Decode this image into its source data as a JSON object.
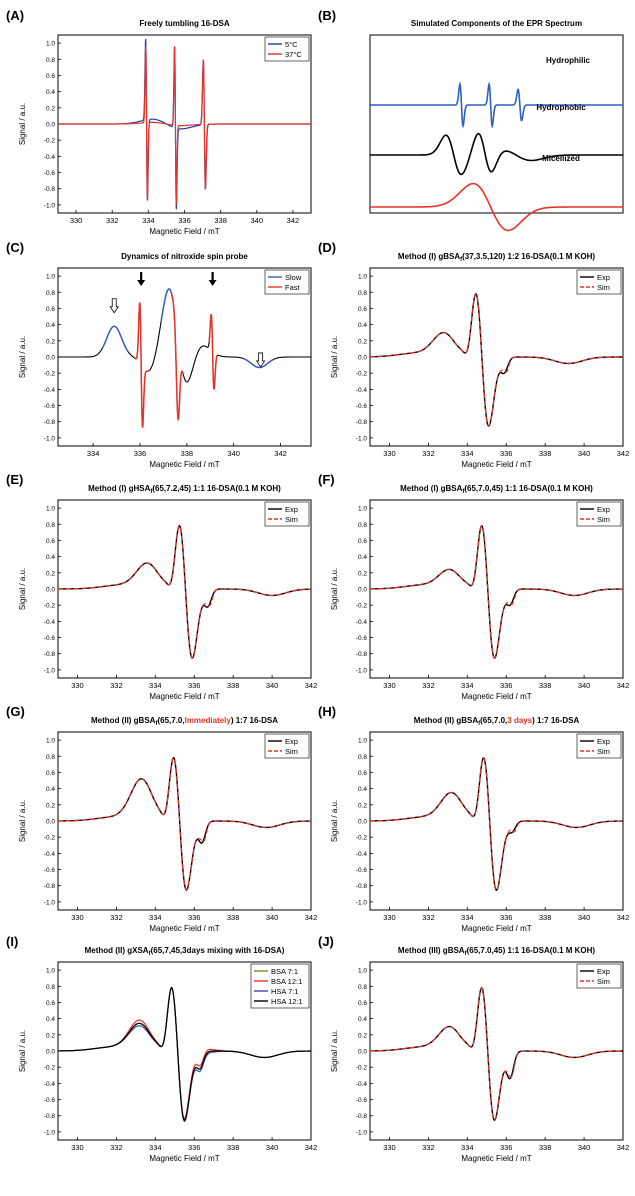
{
  "panels": [
    {
      "letter": "(A)",
      "title_parts": [
        {
          "text": "Freely tumbling 16-DSA",
          "color": "#000000"
        }
      ],
      "xlabel": "Magnetic Field / mT",
      "ylabel": "Signal / a.u.",
      "xticks": [
        "330",
        "332",
        "334",
        "336",
        "338",
        "340",
        "342"
      ],
      "yticks": [
        "-1.0",
        "-0.8",
        "-0.6",
        "-0.4",
        "-0.2",
        "0.0",
        "0.2",
        "0.4",
        "0.6",
        "0.8",
        "1.0"
      ],
      "legend": [
        {
          "label": "5°C",
          "color": "#1f3fa8"
        },
        {
          "label": "37°C",
          "color": "#e8332a"
        }
      ]
    },
    {
      "letter": "(B)",
      "title_parts": [
        {
          "text": "Simulated Components of the  EPR Spectrum",
          "color": "#000000"
        }
      ],
      "component_labels": [
        {
          "text": "Hydrophilic",
          "color": "#000000"
        },
        {
          "text": "Hydrophobic",
          "color": "#000000"
        },
        {
          "text": "Micellized",
          "color": "#000000"
        }
      ]
    },
    {
      "letter": "(C)",
      "title_parts": [
        {
          "text": "Dynamics of nitroxide spin probe",
          "color": "#000000"
        }
      ],
      "xlabel": "Magnetic Field / mT",
      "ylabel": "Signal / a.u.",
      "xticks": [
        "334",
        "336",
        "338",
        "340",
        "342"
      ],
      "yticks": [
        "-1.0",
        "-0.8",
        "-0.6",
        "-0.4",
        "-0.2",
        "0.0",
        "0.2",
        "0.4",
        "0.6",
        "0.8",
        "1.0"
      ],
      "legend": [
        {
          "label": "Slow",
          "color": "#3a5ec0"
        },
        {
          "label": "Fast",
          "color": "#e8332a"
        }
      ]
    },
    {
      "letter": "(D)",
      "title_parts": [
        {
          "text": "Method (I)     gBSA",
          "color": "#000000"
        },
        {
          "text": "f",
          "color": "#000000",
          "sub": true
        },
        {
          "text": "(37,3.5,120)  1:2  16-DSA(0.1 M KOH)",
          "color": "#000000"
        }
      ],
      "xlabel": "Magnetic Field / mT",
      "ylabel": "Signal / a.u.",
      "xticks": [
        "330",
        "332",
        "334",
        "336",
        "338",
        "340",
        "342"
      ],
      "yticks": [
        "-1.0",
        "-0.8",
        "-0.6",
        "-0.4",
        "-0.2",
        "0.0",
        "0.2",
        "0.4",
        "0.6",
        "0.8",
        "1.0"
      ],
      "legend": [
        {
          "label": "Exp",
          "color": "#000000"
        },
        {
          "label": "Sim",
          "color": "#e8332a",
          "dashed": true
        }
      ]
    },
    {
      "letter": "(E)",
      "title_parts": [
        {
          "text": "Method (I)     gHSA",
          "color": "#000000"
        },
        {
          "text": "f",
          "color": "#000000",
          "sub": true
        },
        {
          "text": "(65,7.2,45)  1:1  16-DSA(0.1 M KOH)",
          "color": "#000000"
        }
      ],
      "xlabel": "Magnetic Field / mT",
      "ylabel": "Signal / a.u.",
      "xticks": [
        "330",
        "332",
        "334",
        "336",
        "338",
        "340",
        "342"
      ],
      "yticks": [
        "-1.0",
        "-0.8",
        "-0.6",
        "-0.4",
        "-0.2",
        "0.0",
        "0.2",
        "0.4",
        "0.6",
        "0.8",
        "1.0"
      ],
      "legend": [
        {
          "label": "Exp",
          "color": "#000000"
        },
        {
          "label": "Sim",
          "color": "#e8332a",
          "dashed": true
        }
      ]
    },
    {
      "letter": "(F)",
      "title_parts": [
        {
          "text": "Method (I)     gBSA",
          "color": "#000000"
        },
        {
          "text": "f",
          "color": "#000000",
          "sub": true
        },
        {
          "text": "(65,7.0,45)  1:1  16-DSA(0.1 M KOH)",
          "color": "#000000"
        }
      ],
      "xlabel": "Magnetic Field / mT",
      "ylabel": "Signal / a.u.",
      "xticks": [
        "330",
        "332",
        "334",
        "336",
        "338",
        "340",
        "342"
      ],
      "yticks": [
        "-1.0",
        "-0.8",
        "-0.6",
        "-0.4",
        "-0.2",
        "0.0",
        "0.2",
        "0.4",
        "0.6",
        "0.8",
        "1.0"
      ],
      "legend": [
        {
          "label": "Exp",
          "color": "#000000"
        },
        {
          "label": "Sim",
          "color": "#e8332a",
          "dashed": true
        }
      ]
    },
    {
      "letter": "(G)",
      "title_parts": [
        {
          "text": "Method (II)     gBSA",
          "color": "#000000"
        },
        {
          "text": "f",
          "color": "#000000",
          "sub": true
        },
        {
          "text": "(65,7.0,",
          "color": "#000000"
        },
        {
          "text": "Immediately",
          "color": "#e8332a"
        },
        {
          "text": ")  1:7  16-DSA",
          "color": "#000000"
        }
      ],
      "xlabel": "Magnetic Field / mT",
      "ylabel": "Signal / a.u.",
      "xticks": [
        "330",
        "332",
        "334",
        "336",
        "338",
        "340",
        "342"
      ],
      "yticks": [
        "-1.0",
        "-0.8",
        "-0.6",
        "-0.4",
        "-0.2",
        "0.0",
        "0.2",
        "0.4",
        "0.6",
        "0.8",
        "1.0"
      ],
      "legend": [
        {
          "label": "Exp",
          "color": "#000000"
        },
        {
          "label": "Sim",
          "color": "#e8332a",
          "dashed": true
        }
      ]
    },
    {
      "letter": "(H)",
      "title_parts": [
        {
          "text": "Method (II)     gBSA",
          "color": "#000000"
        },
        {
          "text": "f",
          "color": "#000000",
          "sub": true
        },
        {
          "text": "(65,7.0,",
          "color": "#000000"
        },
        {
          "text": "3 days",
          "color": "#e8332a"
        },
        {
          "text": ")  1:7  16-DSA",
          "color": "#000000"
        }
      ],
      "xlabel": "Magnetic Field / mT",
      "ylabel": "Signal / a.u.",
      "xticks": [
        "330",
        "332",
        "334",
        "336",
        "338",
        "340",
        "342"
      ],
      "yticks": [
        "-1.0",
        "-0.8",
        "-0.6",
        "-0.4",
        "-0.2",
        "0.0",
        "0.2",
        "0.4",
        "0.6",
        "0.8",
        "1.0"
      ],
      "legend": [
        {
          "label": "Exp",
          "color": "#000000"
        },
        {
          "label": "Sim",
          "color": "#e8332a",
          "dashed": true
        }
      ]
    },
    {
      "letter": "(I)",
      "title_parts": [
        {
          "text": "Method (II)     gXSA",
          "color": "#000000"
        },
        {
          "text": "f",
          "color": "#000000",
          "sub": true
        },
        {
          "text": "(65,7,45,3days mixing with 16-DSA)",
          "color": "#000000"
        }
      ],
      "xlabel": "Magnetic Field / mT",
      "ylabel": "Signal / a.u.",
      "xticks": [
        "330",
        "332",
        "334",
        "336",
        "338",
        "340",
        "342"
      ],
      "yticks": [
        "-1.0",
        "-0.8",
        "-0.6",
        "-0.4",
        "-0.2",
        "0.0",
        "0.2",
        "0.4",
        "0.6",
        "0.8",
        "1.0"
      ],
      "legend": [
        {
          "label": "BSA  7:1",
          "color": "#7a8a2a"
        },
        {
          "label": "BSA 12:1",
          "color": "#e8332a"
        },
        {
          "label": "HSA  7:1",
          "color": "#3a4fb0"
        },
        {
          "label": "HSA 12:1",
          "color": "#000000"
        }
      ]
    },
    {
      "letter": "(J)",
      "title_parts": [
        {
          "text": "Method (III)     gBSA",
          "color": "#000000"
        },
        {
          "text": "f",
          "color": "#000000",
          "sub": true
        },
        {
          "text": "(65,7.0,45)  1:1  16-DSA(0.1 M KOH)",
          "color": "#000000"
        }
      ],
      "xlabel": "Magnetic Field / mT",
      "ylabel": "Signal / a.u.",
      "xticks": [
        "330",
        "332",
        "334",
        "336",
        "338",
        "340",
        "342"
      ],
      "yticks": [
        "-1.0",
        "-0.8",
        "-0.6",
        "-0.4",
        "-0.2",
        "0.0",
        "0.2",
        "0.4",
        "0.6",
        "0.8",
        "1.0"
      ],
      "legend": [
        {
          "label": "Exp",
          "color": "#000000"
        },
        {
          "label": "Sim",
          "color": "#e8332a",
          "dashed": true
        }
      ]
    }
  ],
  "chart_data": [
    {
      "panel": "A",
      "type": "line",
      "xlim": [
        329,
        343
      ],
      "ylim": [
        -1.1,
        1.1
      ],
      "series": [
        {
          "name": "5°C",
          "color": "#1f3fa8",
          "lines": [
            {
              "center": 333.9,
              "amp": 1.0,
              "width": 0.05
            },
            {
              "center": 335.5,
              "amp": 1.0,
              "width": 0.05
            },
            {
              "center": 337.1,
              "amp": 0.8,
              "width": 0.06
            }
          ],
          "bump_amp": 0.06
        },
        {
          "name": "37°C",
          "color": "#e8332a",
          "lines": [
            {
              "center": 333.9,
              "amp": 0.95,
              "width": 0.045
            },
            {
              "center": 335.5,
              "amp": 0.98,
              "width": 0.045
            },
            {
              "center": 337.1,
              "amp": 0.8,
              "width": 0.055
            }
          ],
          "bump_amp": 0.02
        }
      ]
    },
    {
      "panel": "B",
      "type": "line",
      "series": [
        {
          "name": "Hydrophilic",
          "color": "#2f5fc0",
          "kind": "three-sharp"
        },
        {
          "name": "Hydrophobic",
          "color": "#000000",
          "kind": "anisotropic"
        },
        {
          "name": "Micellized",
          "color": "#e8332a",
          "kind": "broad"
        }
      ]
    },
    {
      "panel": "C",
      "type": "line",
      "xlim": [
        332.5,
        343.3
      ],
      "ylim": [
        -1.1,
        1.1
      ],
      "series": [
        {
          "name": "Slow",
          "color": "#3a5ec0",
          "highlights": [
            [
              334.4,
              335.5
            ],
            [
              340.4,
              341.7
            ],
            [
              336.9,
              337.4
            ]
          ]
        },
        {
          "name": "Fast",
          "color": "#e8332a",
          "highlights": [
            [
              335.8,
              336.4
            ],
            [
              337.35,
              337.85
            ],
            [
              338.95,
              339.3
            ]
          ]
        }
      ]
    },
    {
      "panel": "D",
      "type": "line",
      "xlim": [
        329,
        342
      ],
      "ylim": [
        -1.1,
        1.1
      ],
      "center": 335.0,
      "shoulder": 0.28,
      "neg": -0.78,
      "series": [
        {
          "name": "Exp",
          "color": "#000000"
        },
        {
          "name": "Sim",
          "color": "#e8332a"
        }
      ]
    },
    {
      "panel": "E",
      "type": "line",
      "xlim": [
        329,
        342
      ],
      "ylim": [
        -1.1,
        1.1
      ],
      "center": 335.8,
      "shoulder": 0.3,
      "neg": -0.8,
      "series": [
        {
          "name": "Exp",
          "color": "#000000"
        },
        {
          "name": "Sim",
          "color": "#e8332a"
        }
      ]
    },
    {
      "panel": "F",
      "type": "line",
      "xlim": [
        329,
        342
      ],
      "ylim": [
        -1.1,
        1.1
      ],
      "center": 335.3,
      "shoulder": 0.22,
      "neg": -0.78,
      "series": [
        {
          "name": "Exp",
          "color": "#000000"
        },
        {
          "name": "Sim",
          "color": "#e8332a"
        }
      ]
    },
    {
      "panel": "G",
      "type": "line",
      "xlim": [
        329,
        342
      ],
      "ylim": [
        -1.1,
        1.1
      ],
      "center": 335.5,
      "shoulder": 0.5,
      "neg": -0.85,
      "series": [
        {
          "name": "Exp",
          "color": "#000000"
        },
        {
          "name": "Sim",
          "color": "#e8332a"
        }
      ]
    },
    {
      "panel": "H",
      "type": "line",
      "xlim": [
        329,
        342
      ],
      "ylim": [
        -1.1,
        1.1
      ],
      "center": 335.4,
      "shoulder": 0.33,
      "neg": -0.72,
      "series": [
        {
          "name": "Exp",
          "color": "#000000"
        },
        {
          "name": "Sim",
          "color": "#e8332a"
        }
      ]
    },
    {
      "panel": "I",
      "type": "line",
      "xlim": [
        329,
        342
      ],
      "ylim": [
        -1.1,
        1.1
      ],
      "center": 335.4,
      "shoulder": 0.32,
      "neg": -0.8,
      "series": [
        {
          "name": "BSA  7:1",
          "color": "#7a8a2a"
        },
        {
          "name": "BSA 12:1",
          "color": "#e8332a"
        },
        {
          "name": "HSA  7:1",
          "color": "#3a4fb0"
        },
        {
          "name": "HSA 12:1",
          "color": "#000000"
        }
      ]
    },
    {
      "panel": "J",
      "type": "line",
      "xlim": [
        329,
        342
      ],
      "ylim": [
        -1.1,
        1.1
      ],
      "center": 335.3,
      "shoulder": 0.28,
      "neg": -0.92,
      "series": [
        {
          "name": "Exp",
          "color": "#000000"
        },
        {
          "name": "Sim",
          "color": "#e8332a"
        }
      ]
    }
  ]
}
